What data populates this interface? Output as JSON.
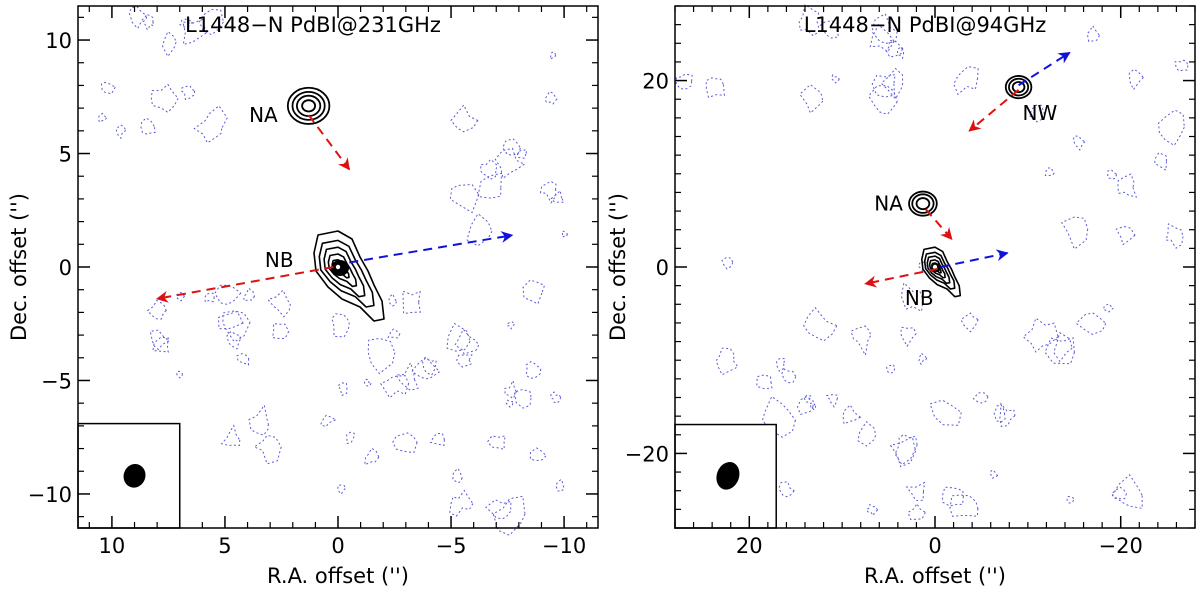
{
  "chart_data": [
    {
      "type": "contour",
      "title": "L1448−N  PdBI@231GHz",
      "xlabel": "R.A. offset ('')",
      "ylabel": "Dec. offset ('')",
      "xlim": [
        11.5,
        -11.5
      ],
      "ylim": [
        -11.5,
        11.5
      ],
      "xticks": [
        10,
        5,
        0,
        -5,
        -10
      ],
      "xtick_labels": [
        "10",
        "5",
        "0",
        "−5",
        "−10"
      ],
      "yticks": [
        -10,
        -5,
        0,
        5,
        10
      ],
      "ytick_labels": [
        "−10",
        "−5",
        "0",
        "5",
        "10"
      ],
      "sources": [
        {
          "label": "NA",
          "x": 1.3,
          "y": 7.1,
          "label_x": 3.3,
          "label_y": 6.7,
          "rings": [
            0.25,
            0.45,
            0.62,
            0.8
          ]
        },
        {
          "label": "NB",
          "x": 0.0,
          "y": 0.0,
          "label_x": 2.6,
          "label_y": 0.3,
          "rings": []
        }
      ],
      "outflows": [
        {
          "x1": 1.3,
          "y1": 6.7,
          "x2": -0.5,
          "y2": 4.3,
          "color": "#dd1111"
        },
        {
          "x1": 0.2,
          "y1": 0.0,
          "x2": 8.0,
          "y2": -1.4,
          "color": "#dd1111"
        },
        {
          "x1": -0.5,
          "y1": 0.2,
          "x2": -7.7,
          "y2": 1.4,
          "color": "#1111dd"
        }
      ],
      "beam": {
        "x": 9.0,
        "y": -9.2,
        "rx": 0.3,
        "ry": 0.33,
        "box_x": [
          11.5,
          7.0
        ],
        "box_y": [
          -11.5,
          -6.9
        ]
      }
    },
    {
      "type": "contour",
      "title": "L1448−N  PdBI@94GHz",
      "xlabel": "R.A. offset ('')",
      "ylabel": "Dec. offset ('')",
      "xlim": [
        28,
        -28
      ],
      "ylim": [
        -28,
        28
      ],
      "xticks": [
        20,
        0,
        -20
      ],
      "xtick_labels": [
        "20",
        "0",
        "−20"
      ],
      "yticks": [
        -20,
        0,
        20
      ],
      "ytick_labels": [
        "−20",
        "0",
        "20"
      ],
      "sources": [
        {
          "label": "NW",
          "x": -9.0,
          "y": 19.3,
          "label_x": -11.3,
          "label_y": 16.5,
          "rings": [
            0.55,
            0.9,
            1.2
          ]
        },
        {
          "label": "NA",
          "x": 1.3,
          "y": 6.8,
          "label_x": 5.0,
          "label_y": 6.8,
          "rings": [
            0.6,
            1.0,
            1.3
          ]
        },
        {
          "label": "NB",
          "x": 0.0,
          "y": 0.0,
          "label_x": 1.7,
          "label_y": -3.3,
          "rings": []
        }
      ],
      "outflows": [
        {
          "x1": -9.0,
          "y1": 19.0,
          "x2": -3.7,
          "y2": 14.6,
          "color": "#dd1111"
        },
        {
          "x1": -9.0,
          "y1": 19.5,
          "x2": -14.5,
          "y2": 23.0,
          "color": "#1111dd"
        },
        {
          "x1": 1.0,
          "y1": 6.2,
          "x2": -1.8,
          "y2": 3.0,
          "color": "#dd1111"
        },
        {
          "x1": -0.3,
          "y1": -0.2,
          "x2": 7.5,
          "y2": -1.8,
          "color": "#dd1111"
        },
        {
          "x1": -0.6,
          "y1": 0.0,
          "x2": -7.8,
          "y2": 1.5,
          "color": "#1111dd"
        }
      ],
      "beam": {
        "x": 22.3,
        "y": -22.4,
        "rx": 0.75,
        "ry": 0.95,
        "box_x": [
          28,
          17.1
        ],
        "box_y": [
          -28,
          -16.9
        ]
      }
    }
  ]
}
